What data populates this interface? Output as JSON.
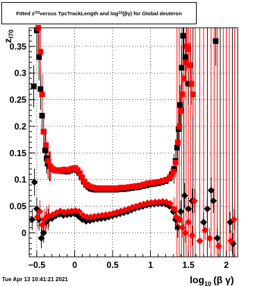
{
  "title": {
    "prefix": "Fitted z",
    "z_sub": "I70",
    "middle": " versus TpcTrackLength and log",
    "log_sub": "10",
    "suffix": "(βγ) for Global deuteron"
  },
  "footer": {
    "timestamp": "Tue Apr 13 10:41:21 2021"
  },
  "chart_data": {
    "type": "scatter",
    "xlabel": {
      "main": "log",
      "sub": "10",
      "rest": "(β γ)"
    },
    "ylabel": {
      "main": "z",
      "sub": "I70"
    },
    "xlim": [
      -0.6,
      2.15
    ],
    "ylim": [
      -0.045,
      0.385
    ],
    "x_ticks": [
      -0.5,
      0,
      0.5,
      1,
      1.5,
      2
    ],
    "x_tick_labels": [
      "−0.5",
      "0",
      "0.5",
      "1",
      "1.5",
      "2"
    ],
    "y_ticks": [
      0,
      0.05,
      0.1,
      0.15,
      0.2,
      0.25,
      0.3,
      0.35
    ],
    "y_tick_labels": [
      "0",
      "0.05",
      "0.1",
      "0.15",
      "0.2",
      "0.25",
      "0.3",
      "0.35"
    ],
    "grid": true,
    "colors": {
      "black_series": "#000000",
      "red_series": "#ff0000"
    },
    "series": [
      {
        "color": "black",
        "marker": "square",
        "points": [
          [
            -0.54,
            0.275
          ],
          [
            -0.5,
            0.38
          ],
          [
            -0.47,
            0.33
          ],
          [
            -0.45,
            0.27
          ],
          [
            -0.43,
            0.22
          ],
          [
            -0.41,
            0.19
          ],
          [
            -0.39,
            0.155
          ],
          [
            -0.37,
            0.14
          ],
          [
            -0.35,
            0.13
          ],
          [
            -0.33,
            0.125
          ],
          [
            -0.3,
            0.12
          ],
          [
            -0.27,
            0.118
          ],
          [
            -0.24,
            0.117
          ],
          [
            -0.21,
            0.117
          ],
          [
            -0.18,
            0.116
          ],
          [
            -0.15,
            0.116
          ],
          [
            -0.12,
            0.115
          ],
          [
            -0.09,
            0.115
          ],
          [
            -0.06,
            0.117
          ],
          [
            -0.03,
            0.119
          ],
          [
            0.0,
            0.12
          ],
          [
            0.03,
            0.117
          ],
          [
            0.06,
            0.112
          ],
          [
            0.09,
            0.104
          ],
          [
            0.12,
            0.096
          ],
          [
            0.15,
            0.09
          ],
          [
            0.18,
            0.086
          ],
          [
            0.21,
            0.083
          ],
          [
            0.24,
            0.082
          ],
          [
            0.27,
            0.081
          ],
          [
            0.3,
            0.081
          ],
          [
            0.35,
            0.081
          ],
          [
            0.4,
            0.081
          ],
          [
            0.45,
            0.081
          ],
          [
            0.5,
            0.081
          ],
          [
            0.55,
            0.081
          ],
          [
            0.6,
            0.082
          ],
          [
            0.65,
            0.082
          ],
          [
            0.7,
            0.083
          ],
          [
            0.75,
            0.084
          ],
          [
            0.8,
            0.085
          ],
          [
            0.85,
            0.086
          ],
          [
            0.9,
            0.088
          ],
          [
            0.95,
            0.089
          ],
          [
            1.0,
            0.091
          ],
          [
            1.05,
            0.092
          ],
          [
            1.1,
            0.093
          ],
          [
            1.15,
            0.095
          ],
          [
            1.2,
            0.097
          ],
          [
            1.25,
            0.102
          ],
          [
            1.28,
            0.11
          ],
          [
            1.31,
            0.12
          ],
          [
            1.33,
            0.135
          ],
          [
            1.35,
            0.16
          ],
          [
            1.37,
            0.195
          ],
          [
            1.39,
            0.24
          ],
          [
            1.41,
            0.31
          ],
          [
            1.43,
            0.37
          ],
          [
            1.46,
            0.33
          ],
          [
            1.5,
            0.28
          ],
          [
            1.86,
            0.36
          ]
        ]
      },
      {
        "color": "red",
        "marker": "square",
        "points": [
          [
            -0.48,
            0.385
          ],
          [
            -0.45,
            0.34
          ],
          [
            -0.43,
            0.26
          ],
          [
            -0.41,
            0.19
          ],
          [
            -0.38,
            0.165
          ],
          [
            -0.35,
            0.135
          ],
          [
            -0.32,
            0.125
          ],
          [
            -0.29,
            0.12
          ],
          [
            -0.26,
            0.118
          ],
          [
            -0.23,
            0.118
          ],
          [
            -0.2,
            0.117
          ],
          [
            -0.17,
            0.118
          ],
          [
            -0.14,
            0.119
          ],
          [
            -0.11,
            0.118
          ],
          [
            -0.08,
            0.118
          ],
          [
            -0.05,
            0.12
          ],
          [
            -0.02,
            0.121
          ],
          [
            0.01,
            0.122
          ],
          [
            0.04,
            0.118
          ],
          [
            0.07,
            0.112
          ],
          [
            0.1,
            0.104
          ],
          [
            0.13,
            0.096
          ],
          [
            0.16,
            0.091
          ],
          [
            0.19,
            0.088
          ],
          [
            0.22,
            0.086
          ],
          [
            0.25,
            0.085
          ],
          [
            0.28,
            0.084
          ],
          [
            0.31,
            0.084
          ],
          [
            0.36,
            0.084
          ],
          [
            0.41,
            0.084
          ],
          [
            0.46,
            0.084
          ],
          [
            0.51,
            0.084
          ],
          [
            0.56,
            0.084
          ],
          [
            0.61,
            0.085
          ],
          [
            0.66,
            0.085
          ],
          [
            0.71,
            0.086
          ],
          [
            0.76,
            0.087
          ],
          [
            0.81,
            0.088
          ],
          [
            0.86,
            0.089
          ],
          [
            0.91,
            0.091
          ],
          [
            0.96,
            0.093
          ],
          [
            1.01,
            0.094
          ],
          [
            1.06,
            0.095
          ],
          [
            1.11,
            0.096
          ],
          [
            1.16,
            0.098
          ],
          [
            1.21,
            0.1
          ],
          [
            1.26,
            0.105
          ],
          [
            1.3,
            0.115
          ],
          [
            1.33,
            0.132
          ],
          [
            1.36,
            0.17
          ],
          [
            1.38,
            0.2
          ],
          [
            1.4,
            0.23
          ],
          [
            1.42,
            0.26
          ],
          [
            1.44,
            0.29
          ],
          [
            1.46,
            0.32
          ],
          [
            1.48,
            0.35
          ],
          [
            1.5,
            0.345
          ],
          [
            1.52,
            0.315
          ],
          [
            1.54,
            0.28
          ],
          [
            1.56,
            0.26
          ]
        ]
      },
      {
        "color": "black",
        "marker": "diamond",
        "points": [
          [
            -0.56,
            0.025
          ],
          [
            -0.53,
            0.095
          ],
          [
            -0.5,
            0.045
          ],
          [
            -0.47,
            0.025
          ],
          [
            -0.44,
            -0.01
          ],
          [
            -0.41,
            0.0
          ],
          [
            -0.38,
            0.02
          ],
          [
            -0.35,
            0.025
          ],
          [
            -0.3,
            0.027
          ],
          [
            -0.25,
            0.032
          ],
          [
            -0.2,
            0.035
          ],
          [
            -0.15,
            0.033
          ],
          [
            -0.1,
            0.034
          ],
          [
            -0.05,
            0.035
          ],
          [
            0.0,
            0.036
          ],
          [
            0.05,
            0.031
          ],
          [
            0.1,
            0.025
          ],
          [
            0.15,
            0.022
          ],
          [
            0.2,
            0.023
          ],
          [
            0.25,
            0.025
          ],
          [
            0.3,
            0.026
          ],
          [
            0.35,
            0.027
          ],
          [
            0.4,
            0.028
          ],
          [
            0.45,
            0.03
          ],
          [
            0.5,
            0.032
          ],
          [
            0.55,
            0.034
          ],
          [
            0.6,
            0.036
          ],
          [
            0.65,
            0.038
          ],
          [
            0.7,
            0.04
          ],
          [
            0.75,
            0.043
          ],
          [
            0.8,
            0.046
          ],
          [
            0.85,
            0.048
          ],
          [
            0.9,
            0.05
          ],
          [
            0.95,
            0.052
          ],
          [
            1.0,
            0.053
          ],
          [
            1.05,
            0.054
          ],
          [
            1.1,
            0.055
          ],
          [
            1.15,
            0.055
          ],
          [
            1.2,
            0.054
          ],
          [
            1.25,
            0.05
          ],
          [
            1.3,
            0.04
          ],
          [
            1.33,
            0.025
          ],
          [
            1.36,
            0.01
          ],
          [
            1.4,
            0.04
          ],
          [
            1.45,
            0.07
          ],
          [
            1.5,
            0.045
          ],
          [
            1.55,
            0.06
          ],
          [
            1.7,
            0.02
          ],
          [
            1.75,
            0.045
          ],
          [
            1.8,
            0.08
          ],
          [
            1.83,
            0.06
          ],
          [
            1.88,
            -0.01
          ],
          [
            2.05,
            0.02
          ],
          [
            2.09,
            -0.02
          ]
        ]
      },
      {
        "color": "red",
        "marker": "diamond",
        "points": [
          [
            -0.49,
            0.03
          ],
          [
            -0.46,
            0.04
          ],
          [
            -0.43,
            0.015
          ],
          [
            -0.4,
            0.025
          ],
          [
            -0.37,
            0.03
          ],
          [
            -0.34,
            0.032
          ],
          [
            -0.29,
            0.034
          ],
          [
            -0.24,
            0.038
          ],
          [
            -0.19,
            0.041
          ],
          [
            -0.14,
            0.039
          ],
          [
            -0.09,
            0.04
          ],
          [
            -0.04,
            0.041
          ],
          [
            0.01,
            0.042
          ],
          [
            0.06,
            0.04
          ],
          [
            0.11,
            0.033
          ],
          [
            0.16,
            0.03
          ],
          [
            0.21,
            0.03
          ],
          [
            0.26,
            0.031
          ],
          [
            0.31,
            0.032
          ],
          [
            0.36,
            0.033
          ],
          [
            0.41,
            0.034
          ],
          [
            0.46,
            0.035
          ],
          [
            0.51,
            0.037
          ],
          [
            0.56,
            0.039
          ],
          [
            0.61,
            0.041
          ],
          [
            0.66,
            0.043
          ],
          [
            0.71,
            0.045
          ],
          [
            0.76,
            0.048
          ],
          [
            0.81,
            0.05
          ],
          [
            0.86,
            0.052
          ],
          [
            0.91,
            0.054
          ],
          [
            0.96,
            0.056
          ],
          [
            1.01,
            0.057
          ],
          [
            1.06,
            0.058
          ],
          [
            1.11,
            0.058
          ],
          [
            1.16,
            0.059
          ],
          [
            1.21,
            0.058
          ],
          [
            1.26,
            0.055
          ],
          [
            1.31,
            0.045
          ],
          [
            1.34,
            0.03
          ],
          [
            1.38,
            0.025
          ],
          [
            1.42,
            0.01
          ],
          [
            1.46,
            0.0
          ],
          [
            1.5,
            0.02
          ],
          [
            1.55,
            -0.005
          ],
          [
            1.58,
            0.06
          ],
          [
            1.65,
            -0.015
          ],
          [
            1.72,
            0.005
          ],
          [
            1.78,
            -0.01
          ],
          [
            1.9,
            -0.025
          ],
          [
            2.06,
            -0.015
          ],
          [
            2.1,
            0.025
          ]
        ]
      }
    ],
    "wide_error_x": [
      1.35,
      1.38,
      1.41,
      1.44,
      1.47,
      1.5,
      1.53,
      1.56,
      1.59,
      1.65,
      1.7,
      1.75,
      1.8,
      1.84,
      1.88,
      1.92,
      1.96,
      2.0,
      2.04,
      2.08,
      2.11
    ]
  }
}
